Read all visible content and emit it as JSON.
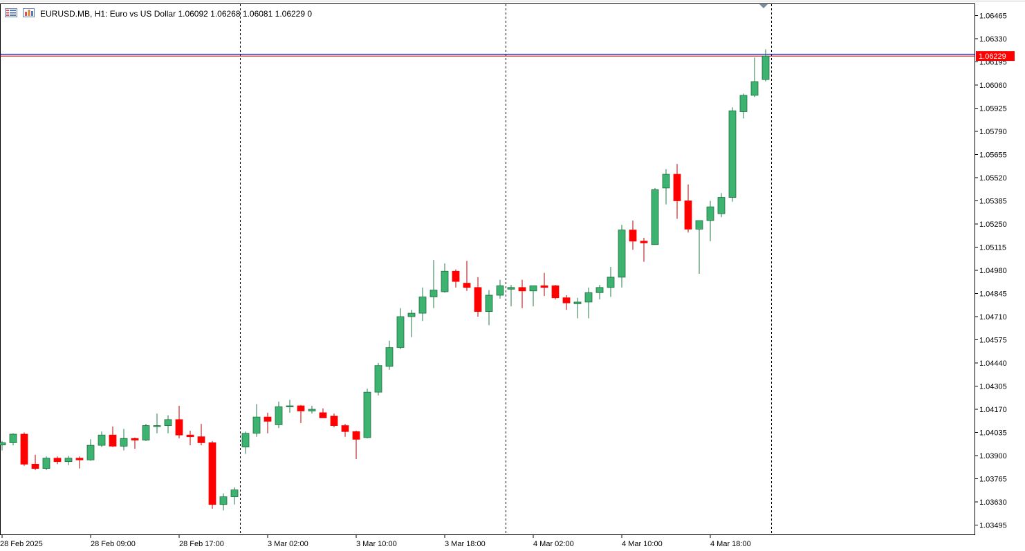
{
  "header": {
    "symbol": "EURUSD.MB",
    "timeframe": "H1:",
    "description": "Euro vs US Dollar",
    "open": "1.06092",
    "high": "1.06268",
    "low": "1.06081",
    "close": "1.06229",
    "volume": "0"
  },
  "colors": {
    "bull": "#3cb371",
    "bear": "#ff0000",
    "bid_line": "#0000c8",
    "ask_line": "#c00000",
    "price_tag": "#ff0000",
    "separator": "#000000",
    "background": "#ffffff"
  },
  "icons": [
    "chart-list-icon",
    "chart-bars-icon",
    "shift-marker-icon"
  ],
  "current_price_label": "1.06229",
  "chart_data": {
    "type": "candlestick",
    "timeframe": "H1",
    "y_axis": {
      "position": "right",
      "range": [
        1.0341,
        1.0657
      ],
      "ticks": [
        "1.06465",
        "1.06330",
        "1.06195",
        "1.06060",
        "1.05925",
        "1.05790",
        "1.05655",
        "1.05520",
        "1.05385",
        "1.05250",
        "1.05115",
        "1.04980",
        "1.04845",
        "1.04710",
        "1.04575",
        "1.04440",
        "1.04305",
        "1.04170",
        "1.04035",
        "1.03900",
        "1.03765",
        "1.03630",
        "1.03495"
      ]
    },
    "x_axis": {
      "ticks": [
        "28 Feb 2025",
        "28 Feb 09:00",
        "28 Feb 17:00",
        "3 Mar 02:00",
        "3 Mar 10:00",
        "3 Mar 18:00",
        "4 Mar 02:00",
        "4 Mar 10:00",
        "4 Mar 18:00"
      ],
      "tick_candle_index": [
        0,
        8,
        16,
        24,
        32,
        40,
        48,
        56,
        64
      ]
    },
    "day_separators_candle_index": [
      21.5,
      45.5,
      69.5
    ],
    "bid": 1.06229,
    "ask": 1.0624,
    "grid": false,
    "candles": [
      {
        "o": 1.03962,
        "h": 1.03985,
        "l": 1.0393,
        "c": 1.03975
      },
      {
        "o": 1.03975,
        "h": 1.0403,
        "l": 1.0396,
        "c": 1.04025
      },
      {
        "o": 1.04025,
        "h": 1.04035,
        "l": 1.0384,
        "c": 1.0385
      },
      {
        "o": 1.0385,
        "h": 1.03905,
        "l": 1.03815,
        "c": 1.03825
      },
      {
        "o": 1.03825,
        "h": 1.03895,
        "l": 1.03815,
        "c": 1.03885
      },
      {
        "o": 1.03885,
        "h": 1.03895,
        "l": 1.0385,
        "c": 1.03865
      },
      {
        "o": 1.03865,
        "h": 1.03898,
        "l": 1.03845,
        "c": 1.03885
      },
      {
        "o": 1.03885,
        "h": 1.03895,
        "l": 1.03825,
        "c": 1.03875
      },
      {
        "o": 1.03875,
        "h": 1.03995,
        "l": 1.0387,
        "c": 1.0396
      },
      {
        "o": 1.0396,
        "h": 1.0404,
        "l": 1.0395,
        "c": 1.0402
      },
      {
        "o": 1.0402,
        "h": 1.0407,
        "l": 1.0395,
        "c": 1.03955
      },
      {
        "o": 1.03955,
        "h": 1.04055,
        "l": 1.0393,
        "c": 1.04
      },
      {
        "o": 1.04,
        "h": 1.04005,
        "l": 1.0394,
        "c": 1.0399
      },
      {
        "o": 1.0399,
        "h": 1.04085,
        "l": 1.03985,
        "c": 1.04075
      },
      {
        "o": 1.04075,
        "h": 1.04145,
        "l": 1.0403,
        "c": 1.04075
      },
      {
        "o": 1.04075,
        "h": 1.04135,
        "l": 1.0403,
        "c": 1.0411
      },
      {
        "o": 1.0411,
        "h": 1.0419,
        "l": 1.04,
        "c": 1.0402
      },
      {
        "o": 1.0402,
        "h": 1.04045,
        "l": 1.0396,
        "c": 1.0401
      },
      {
        "o": 1.0401,
        "h": 1.04085,
        "l": 1.0396,
        "c": 1.03975
      },
      {
        "o": 1.03975,
        "h": 1.03985,
        "l": 1.0359,
        "c": 1.03615
      },
      {
        "o": 1.03615,
        "h": 1.0368,
        "l": 1.0358,
        "c": 1.0366
      },
      {
        "o": 1.0366,
        "h": 1.03715,
        "l": 1.03615,
        "c": 1.037
      },
      {
        "o": 1.0395,
        "h": 1.0404,
        "l": 1.0391,
        "c": 1.0403
      },
      {
        "o": 1.0403,
        "h": 1.042,
        "l": 1.0401,
        "c": 1.04125
      },
      {
        "o": 1.04125,
        "h": 1.0415,
        "l": 1.0403,
        "c": 1.041
      },
      {
        "o": 1.0408,
        "h": 1.04215,
        "l": 1.0406,
        "c": 1.04185
      },
      {
        "o": 1.04185,
        "h": 1.04225,
        "l": 1.0415,
        "c": 1.0419
      },
      {
        "o": 1.0419,
        "h": 1.04195,
        "l": 1.0409,
        "c": 1.0416
      },
      {
        "o": 1.0416,
        "h": 1.0419,
        "l": 1.04145,
        "c": 1.0417
      },
      {
        "o": 1.0415,
        "h": 1.04175,
        "l": 1.0412,
        "c": 1.0412
      },
      {
        "o": 1.0413,
        "h": 1.04145,
        "l": 1.04065,
        "c": 1.04075
      },
      {
        "o": 1.04075,
        "h": 1.04085,
        "l": 1.0401,
        "c": 1.0404
      },
      {
        "o": 1.0404,
        "h": 1.04045,
        "l": 1.0388,
        "c": 1.03995
      },
      {
        "o": 1.04005,
        "h": 1.0429,
        "l": 1.04,
        "c": 1.0427
      },
      {
        "o": 1.0427,
        "h": 1.0444,
        "l": 1.0425,
        "c": 1.04425
      },
      {
        "o": 1.0442,
        "h": 1.0457,
        "l": 1.044,
        "c": 1.0453
      },
      {
        "o": 1.0453,
        "h": 1.0476,
        "l": 1.0452,
        "c": 1.0471
      },
      {
        "o": 1.0471,
        "h": 1.0475,
        "l": 1.0459,
        "c": 1.0473
      },
      {
        "o": 1.0473,
        "h": 1.0488,
        "l": 1.04685,
        "c": 1.04825
      },
      {
        "o": 1.04825,
        "h": 1.0504,
        "l": 1.0476,
        "c": 1.04865
      },
      {
        "o": 1.04855,
        "h": 1.0502,
        "l": 1.0485,
        "c": 1.04975
      },
      {
        "o": 1.04975,
        "h": 1.04985,
        "l": 1.0488,
        "c": 1.04915
      },
      {
        "o": 1.04905,
        "h": 1.05035,
        "l": 1.0486,
        "c": 1.0488
      },
      {
        "o": 1.0488,
        "h": 1.0494,
        "l": 1.0471,
        "c": 1.0474
      },
      {
        "o": 1.0474,
        "h": 1.04865,
        "l": 1.0466,
        "c": 1.04835
      },
      {
        "o": 1.04835,
        "h": 1.04925,
        "l": 1.04815,
        "c": 1.0489
      },
      {
        "o": 1.0487,
        "h": 1.04895,
        "l": 1.0477,
        "c": 1.0488
      },
      {
        "o": 1.0488,
        "h": 1.04925,
        "l": 1.0476,
        "c": 1.0486
      },
      {
        "o": 1.0486,
        "h": 1.0489,
        "l": 1.0477,
        "c": 1.0489
      },
      {
        "o": 1.0489,
        "h": 1.04965,
        "l": 1.0483,
        "c": 1.0488
      },
      {
        "o": 1.0489,
        "h": 1.04895,
        "l": 1.0481,
        "c": 1.0482
      },
      {
        "o": 1.0482,
        "h": 1.04835,
        "l": 1.0475,
        "c": 1.0479
      },
      {
        "o": 1.04785,
        "h": 1.0482,
        "l": 1.047,
        "c": 1.04795
      },
      {
        "o": 1.04795,
        "h": 1.0488,
        "l": 1.047,
        "c": 1.0485
      },
      {
        "o": 1.0485,
        "h": 1.04895,
        "l": 1.0481,
        "c": 1.0488
      },
      {
        "o": 1.0488,
        "h": 1.05,
        "l": 1.04825,
        "c": 1.0494
      },
      {
        "o": 1.0494,
        "h": 1.05245,
        "l": 1.0488,
        "c": 1.05215
      },
      {
        "o": 1.05215,
        "h": 1.0527,
        "l": 1.051,
        "c": 1.0515
      },
      {
        "o": 1.0515,
        "h": 1.0517,
        "l": 1.0503,
        "c": 1.0514
      },
      {
        "o": 1.0513,
        "h": 1.0546,
        "l": 1.0513,
        "c": 1.0545
      },
      {
        "o": 1.0546,
        "h": 1.0557,
        "l": 1.05365,
        "c": 1.0554
      },
      {
        "o": 1.0554,
        "h": 1.056,
        "l": 1.0528,
        "c": 1.05385
      },
      {
        "o": 1.05385,
        "h": 1.0548,
        "l": 1.052,
        "c": 1.0522
      },
      {
        "o": 1.0522,
        "h": 1.0526,
        "l": 1.0496,
        "c": 1.0527
      },
      {
        "o": 1.0527,
        "h": 1.05385,
        "l": 1.0515,
        "c": 1.0535
      },
      {
        "o": 1.0531,
        "h": 1.0543,
        "l": 1.0529,
        "c": 1.05405
      },
      {
        "o": 1.05405,
        "h": 1.0593,
        "l": 1.0538,
        "c": 1.0591
      },
      {
        "o": 1.05905,
        "h": 1.0601,
        "l": 1.05865,
        "c": 1.06
      },
      {
        "o": 1.06,
        "h": 1.0622,
        "l": 1.0599,
        "c": 1.0608
      },
      {
        "o": 1.06092,
        "h": 1.06268,
        "l": 1.06081,
        "c": 1.06229
      }
    ]
  }
}
